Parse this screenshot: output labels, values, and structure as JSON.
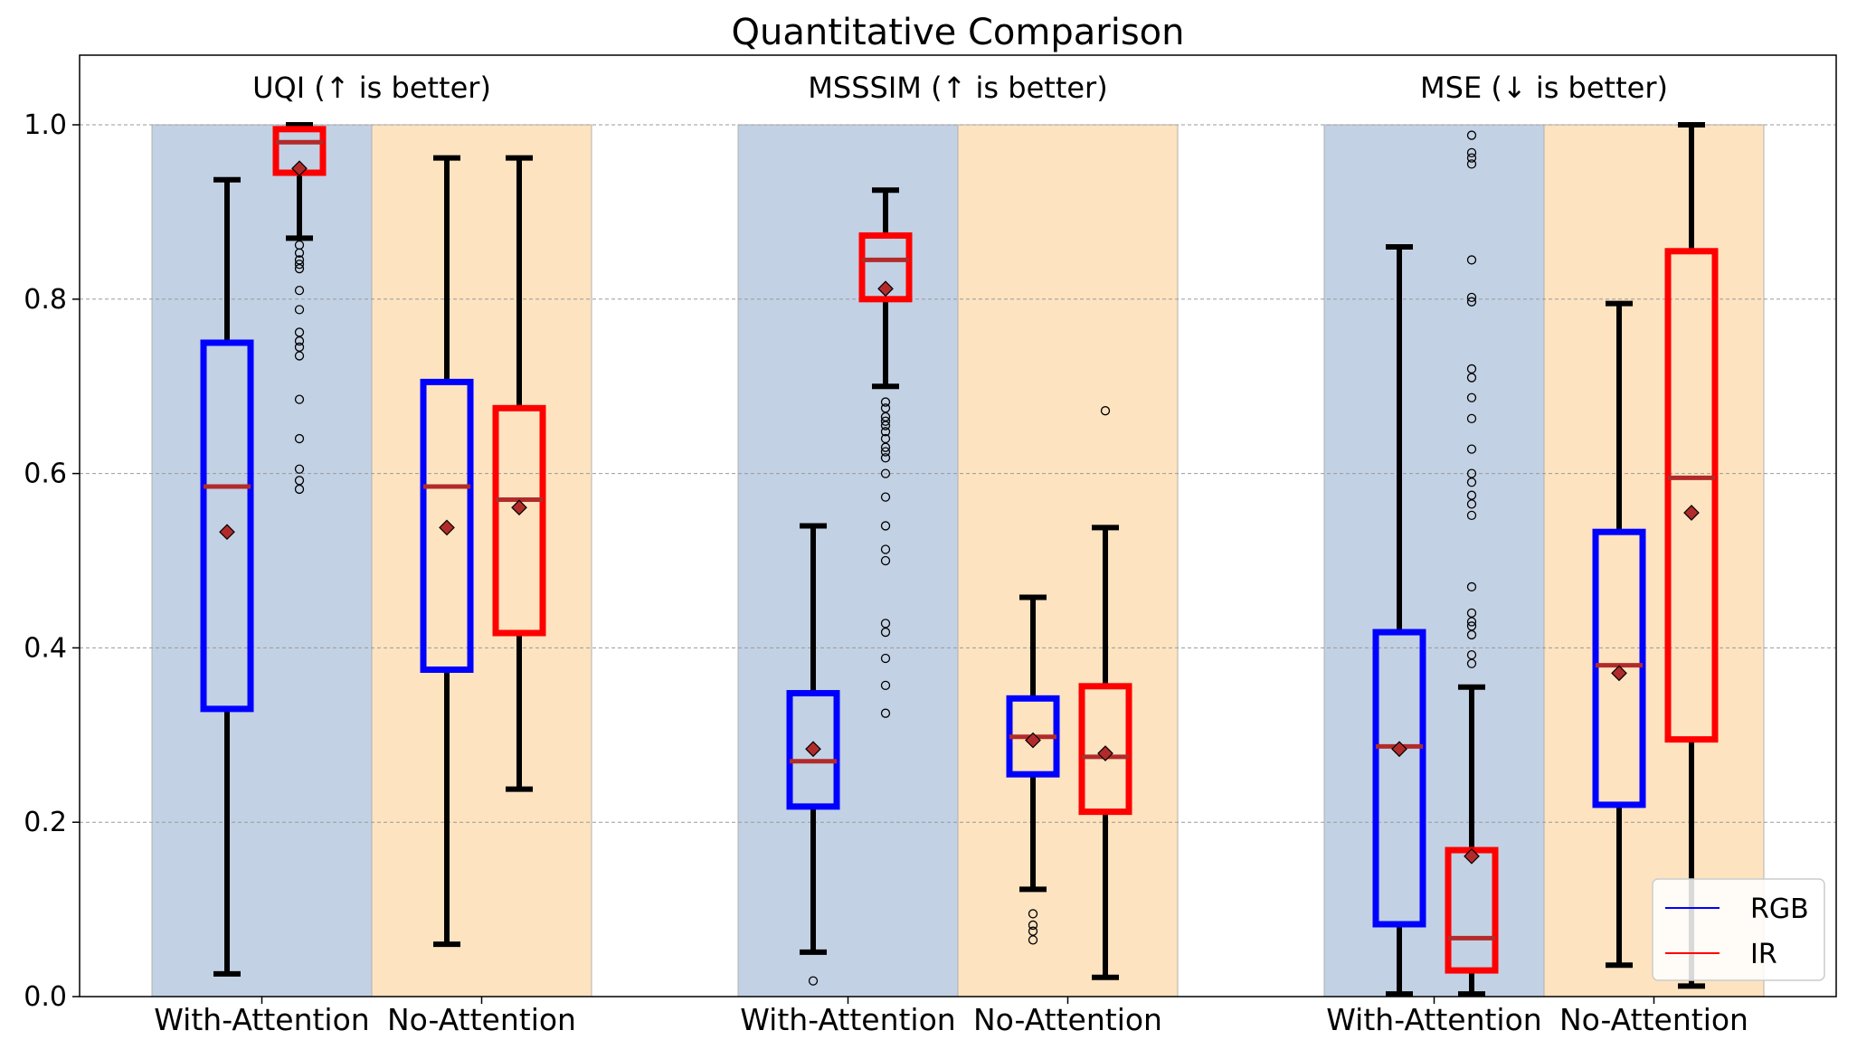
{
  "chart_data": {
    "type": "box",
    "title": "Quantitative Comparison",
    "ylim": [
      0,
      1.08
    ],
    "yticks": [
      "0.0",
      "0.2",
      "0.4",
      "0.6",
      "0.8",
      "1.0"
    ],
    "ytick_values": [
      0,
      0.2,
      0.4,
      0.6,
      0.8,
      1.0
    ],
    "grid": "y-dashed",
    "legend_position": "bottom-right",
    "legend": [
      {
        "name": "RGB",
        "color": "#0000ff"
      },
      {
        "name": "IR",
        "color": "#ff0000"
      }
    ],
    "group_colors": {
      "With-Attention": "#c3d1e4",
      "No-Attention": "#fde3c0"
    },
    "median_color": "#b22b2b",
    "mean_marker_color": "#b22b2b",
    "panels": [
      {
        "label": "UQI (↑ is better)",
        "groups": [
          {
            "name": "With-Attention",
            "boxes": [
              {
                "series": "RGB",
                "whislo": 0.026,
                "q1": 0.33,
                "med": 0.585,
                "q3": 0.75,
                "whishi": 0.937,
                "mean": 0.533,
                "fliers": []
              },
              {
                "series": "IR",
                "whislo": 0.87,
                "q1": 0.945,
                "med": 0.98,
                "q3": 0.995,
                "whishi": 1.0,
                "mean": 0.95,
                "fliers": [
                  0.862,
                  0.853,
                  0.845,
                  0.84,
                  0.835,
                  0.81,
                  0.788,
                  0.762,
                  0.752,
                  0.745,
                  0.735,
                  0.685,
                  0.64,
                  0.605,
                  0.592,
                  0.582
                ]
              }
            ]
          },
          {
            "name": "No-Attention",
            "boxes": [
              {
                "series": "RGB",
                "whislo": 0.06,
                "q1": 0.375,
                "med": 0.585,
                "q3": 0.705,
                "whishi": 0.962,
                "mean": 0.538,
                "fliers": []
              },
              {
                "series": "IR",
                "whislo": 0.238,
                "q1": 0.417,
                "med": 0.57,
                "q3": 0.675,
                "whishi": 0.962,
                "mean": 0.561,
                "fliers": []
              }
            ]
          }
        ]
      },
      {
        "label": "MSSSIM (↑ is better)",
        "groups": [
          {
            "name": "With-Attention",
            "boxes": [
              {
                "series": "RGB",
                "whislo": 0.051,
                "q1": 0.218,
                "med": 0.27,
                "q3": 0.348,
                "whishi": 0.54,
                "mean": 0.284,
                "fliers": [
                  0.018
                ]
              },
              {
                "series": "IR",
                "whislo": 0.7,
                "q1": 0.8,
                "med": 0.845,
                "q3": 0.873,
                "whishi": 0.925,
                "mean": 0.812,
                "fliers": [
                  0.682,
                  0.675,
                  0.665,
                  0.66,
                  0.655,
                  0.648,
                  0.64,
                  0.63,
                  0.625,
                  0.618,
                  0.6,
                  0.573,
                  0.54,
                  0.513,
                  0.5,
                  0.428,
                  0.418,
                  0.388,
                  0.357,
                  0.325
                ]
              }
            ]
          },
          {
            "name": "No-Attention",
            "boxes": [
              {
                "series": "RGB",
                "whislo": 0.123,
                "q1": 0.255,
                "med": 0.298,
                "q3": 0.342,
                "whishi": 0.458,
                "mean": 0.294,
                "fliers": [
                  0.095,
                  0.082,
                  0.075,
                  0.065
                ]
              },
              {
                "series": "IR",
                "whislo": 0.022,
                "q1": 0.212,
                "med": 0.275,
                "q3": 0.356,
                "whishi": 0.538,
                "mean": 0.279,
                "fliers": [
                  0.672
                ]
              }
            ]
          }
        ]
      },
      {
        "label": "MSE (↓ is better)",
        "groups": [
          {
            "name": "With-Attention",
            "boxes": [
              {
                "series": "RGB",
                "whislo": 0.003,
                "q1": 0.083,
                "med": 0.287,
                "q3": 0.418,
                "whishi": 0.86,
                "mean": 0.284,
                "fliers": []
              },
              {
                "series": "IR",
                "whislo": 0.003,
                "q1": 0.03,
                "med": 0.067,
                "q3": 0.168,
                "whishi": 0.355,
                "mean": 0.161,
                "fliers": [
                  0.988,
                  0.968,
                  0.962,
                  0.955,
                  0.845,
                  0.802,
                  0.797,
                  0.72,
                  0.71,
                  0.687,
                  0.663,
                  0.628,
                  0.6,
                  0.59,
                  0.575,
                  0.565,
                  0.552,
                  0.47,
                  0.44,
                  0.43,
                  0.425,
                  0.415,
                  0.392,
                  0.382
                ]
              }
            ]
          },
          {
            "name": "No-Attention",
            "boxes": [
              {
                "series": "RGB",
                "whislo": 0.036,
                "q1": 0.22,
                "med": 0.38,
                "q3": 0.533,
                "whishi": 0.795,
                "mean": 0.371,
                "fliers": []
              },
              {
                "series": "IR",
                "whislo": 0.012,
                "q1": 0.295,
                "med": 0.595,
                "q3": 0.855,
                "whishi": 1.0,
                "mean": 0.555,
                "fliers": []
              }
            ]
          }
        ]
      }
    ]
  }
}
